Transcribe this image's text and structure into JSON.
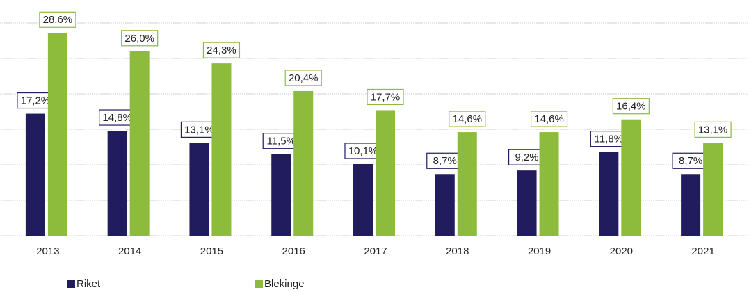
{
  "chart_data": {
    "type": "bar",
    "categories": [
      "2013",
      "2014",
      "2015",
      "2016",
      "2017",
      "2018",
      "2019",
      "2020",
      "2021"
    ],
    "series": [
      {
        "name": "Riket",
        "color": "#201c5e",
        "values": [
          17.2,
          14.8,
          13.1,
          11.5,
          10.1,
          8.7,
          9.2,
          11.8,
          8.7
        ],
        "value_labels": [
          "17,2%",
          "14,8%",
          "13,1%",
          "11,5%",
          "10,1%",
          "8,7%",
          "9,2%",
          "11,8%",
          "8,7%"
        ]
      },
      {
        "name": "Blekinge",
        "color": "#8dbb3b",
        "values": [
          28.6,
          26.0,
          24.3,
          20.4,
          17.7,
          14.6,
          14.6,
          16.4,
          13.1
        ],
        "value_labels": [
          "28,6%",
          "26,0%",
          "24,3%",
          "20,4%",
          "17,7%",
          "14,6%",
          "14,6%",
          "16,4%",
          "13,1%"
        ]
      }
    ],
    "ylim": [
      0,
      30
    ],
    "yticks": [
      0,
      5,
      10,
      15,
      20,
      25,
      30
    ],
    "grid": true
  }
}
